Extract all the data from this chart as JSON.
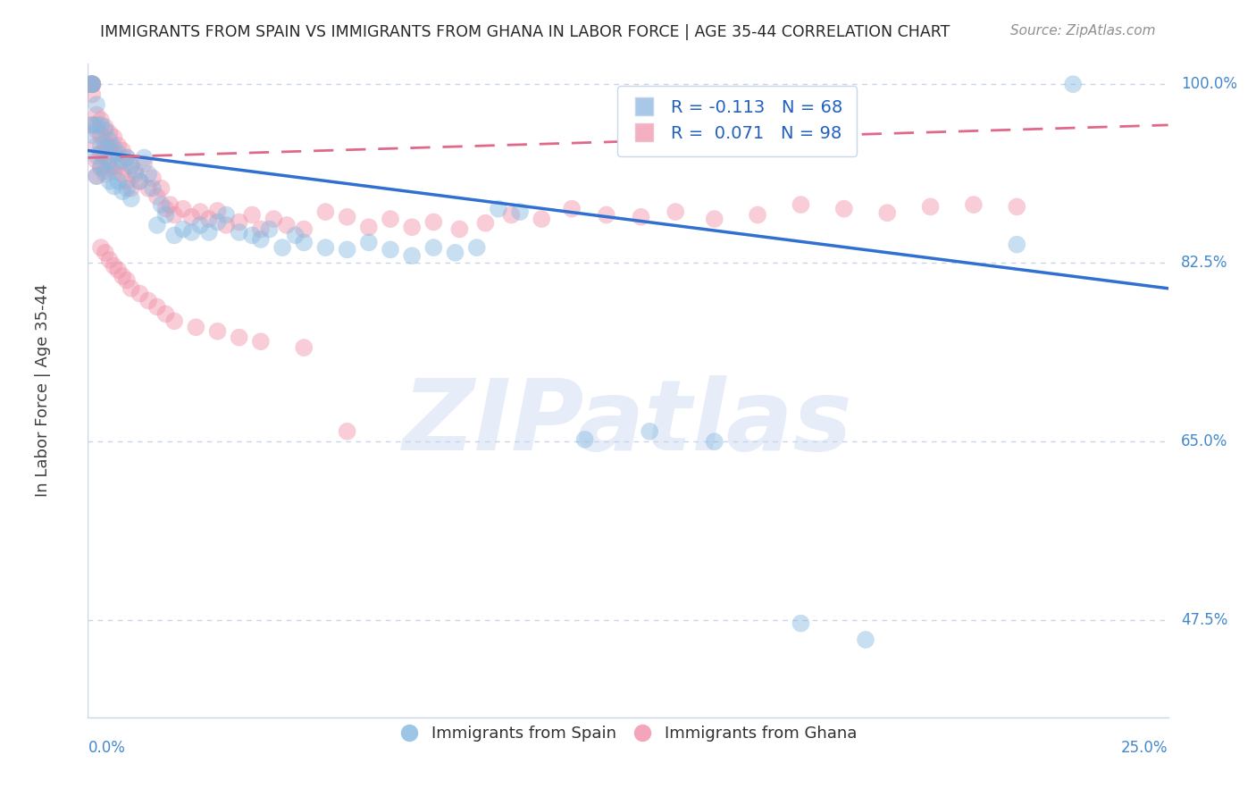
{
  "title": "IMMIGRANTS FROM SPAIN VS IMMIGRANTS FROM GHANA IN LABOR FORCE | AGE 35-44 CORRELATION CHART",
  "source": "Source: ZipAtlas.com",
  "ylabel": "In Labor Force | Age 35-44",
  "watermark": "ZIPatlas",
  "legend_blue_label": "R = -0.113   N = 68",
  "legend_pink_label": "R =  0.071   N = 98",
  "legend_blue_color": "#a8c8e8",
  "legend_pink_color": "#f4b0c0",
  "dot_blue_color": "#85b8e0",
  "dot_pink_color": "#f090a8",
  "line_blue_color": "#3070d0",
  "line_pink_color": "#e06888",
  "grid_color": "#c8d4e8",
  "title_color": "#282828",
  "source_color": "#909090",
  "axis_label_color": "#4488cc",
  "R_blue": -0.113,
  "N_blue": 68,
  "R_pink": 0.071,
  "N_pink": 98,
  "xlim": [
    0.0,
    0.25
  ],
  "ylim": [
    0.38,
    1.02
  ],
  "blue_line_x0": 0.0,
  "blue_line_y0": 0.935,
  "blue_line_x1": 0.25,
  "blue_line_y1": 0.8,
  "pink_line_x0": 0.0,
  "pink_line_y0": 0.928,
  "pink_line_x1": 0.25,
  "pink_line_y1": 0.96,
  "spain_x": [
    0.0005,
    0.001,
    0.001,
    0.001,
    0.001,
    0.002,
    0.002,
    0.002,
    0.002,
    0.003,
    0.003,
    0.003,
    0.004,
    0.004,
    0.004,
    0.005,
    0.005,
    0.005,
    0.006,
    0.006,
    0.006,
    0.007,
    0.007,
    0.008,
    0.008,
    0.009,
    0.009,
    0.01,
    0.01,
    0.011,
    0.012,
    0.013,
    0.014,
    0.015,
    0.016,
    0.017,
    0.018,
    0.02,
    0.022,
    0.024,
    0.026,
    0.028,
    0.03,
    0.032,
    0.035,
    0.038,
    0.04,
    0.042,
    0.045,
    0.048,
    0.05,
    0.055,
    0.06,
    0.065,
    0.07,
    0.075,
    0.08,
    0.085,
    0.09,
    0.095,
    0.1,
    0.115,
    0.13,
    0.145,
    0.165,
    0.18,
    0.215,
    0.228
  ],
  "spain_y": [
    1.0,
    1.0,
    1.0,
    0.96,
    0.95,
    0.98,
    0.96,
    0.93,
    0.91,
    0.96,
    0.94,
    0.92,
    0.955,
    0.938,
    0.915,
    0.945,
    0.925,
    0.905,
    0.938,
    0.92,
    0.9,
    0.932,
    0.905,
    0.925,
    0.895,
    0.928,
    0.898,
    0.92,
    0.888,
    0.915,
    0.905,
    0.928,
    0.912,
    0.898,
    0.862,
    0.882,
    0.872,
    0.852,
    0.858,
    0.855,
    0.862,
    0.855,
    0.865,
    0.872,
    0.855,
    0.852,
    0.848,
    0.858,
    0.84,
    0.852,
    0.845,
    0.84,
    0.838,
    0.845,
    0.838,
    0.832,
    0.84,
    0.835,
    0.84,
    0.878,
    0.875,
    0.652,
    0.66,
    0.65,
    0.472,
    0.456,
    0.843,
    1.0
  ],
  "ghana_x": [
    0.0005,
    0.001,
    0.001,
    0.001,
    0.001,
    0.001,
    0.001,
    0.002,
    0.002,
    0.002,
    0.002,
    0.002,
    0.003,
    0.003,
    0.003,
    0.003,
    0.004,
    0.004,
    0.004,
    0.004,
    0.005,
    0.005,
    0.005,
    0.006,
    0.006,
    0.006,
    0.007,
    0.007,
    0.008,
    0.008,
    0.009,
    0.009,
    0.01,
    0.01,
    0.011,
    0.012,
    0.013,
    0.014,
    0.015,
    0.016,
    0.017,
    0.018,
    0.019,
    0.02,
    0.022,
    0.024,
    0.026,
    0.028,
    0.03,
    0.032,
    0.035,
    0.038,
    0.04,
    0.043,
    0.046,
    0.05,
    0.055,
    0.06,
    0.065,
    0.07,
    0.075,
    0.08,
    0.086,
    0.092,
    0.098,
    0.105,
    0.112,
    0.12,
    0.128,
    0.136,
    0.145,
    0.155,
    0.165,
    0.175,
    0.185,
    0.195,
    0.205,
    0.215,
    0.003,
    0.004,
    0.005,
    0.006,
    0.007,
    0.008,
    0.009,
    0.01,
    0.012,
    0.014,
    0.016,
    0.018,
    0.02,
    0.025,
    0.03,
    0.035,
    0.04,
    0.05,
    0.06
  ],
  "ghana_y": [
    1.0,
    1.0,
    1.0,
    1.0,
    1.0,
    0.99,
    0.96,
    0.97,
    0.955,
    0.94,
    0.925,
    0.91,
    0.965,
    0.95,
    0.932,
    0.918,
    0.958,
    0.942,
    0.928,
    0.912,
    0.952,
    0.938,
    0.92,
    0.948,
    0.932,
    0.915,
    0.94,
    0.92,
    0.935,
    0.912,
    0.928,
    0.905,
    0.92,
    0.898,
    0.912,
    0.905,
    0.922,
    0.898,
    0.908,
    0.89,
    0.898,
    0.878,
    0.882,
    0.872,
    0.878,
    0.87,
    0.875,
    0.868,
    0.876,
    0.862,
    0.865,
    0.872,
    0.858,
    0.868,
    0.862,
    0.858,
    0.875,
    0.87,
    0.86,
    0.868,
    0.86,
    0.865,
    0.858,
    0.864,
    0.872,
    0.868,
    0.878,
    0.872,
    0.87,
    0.875,
    0.868,
    0.872,
    0.882,
    0.878,
    0.874,
    0.88,
    0.882,
    0.88,
    0.84,
    0.835,
    0.828,
    0.822,
    0.818,
    0.812,
    0.808,
    0.8,
    0.795,
    0.788,
    0.782,
    0.775,
    0.768,
    0.762,
    0.758,
    0.752,
    0.748,
    0.742,
    0.66
  ]
}
